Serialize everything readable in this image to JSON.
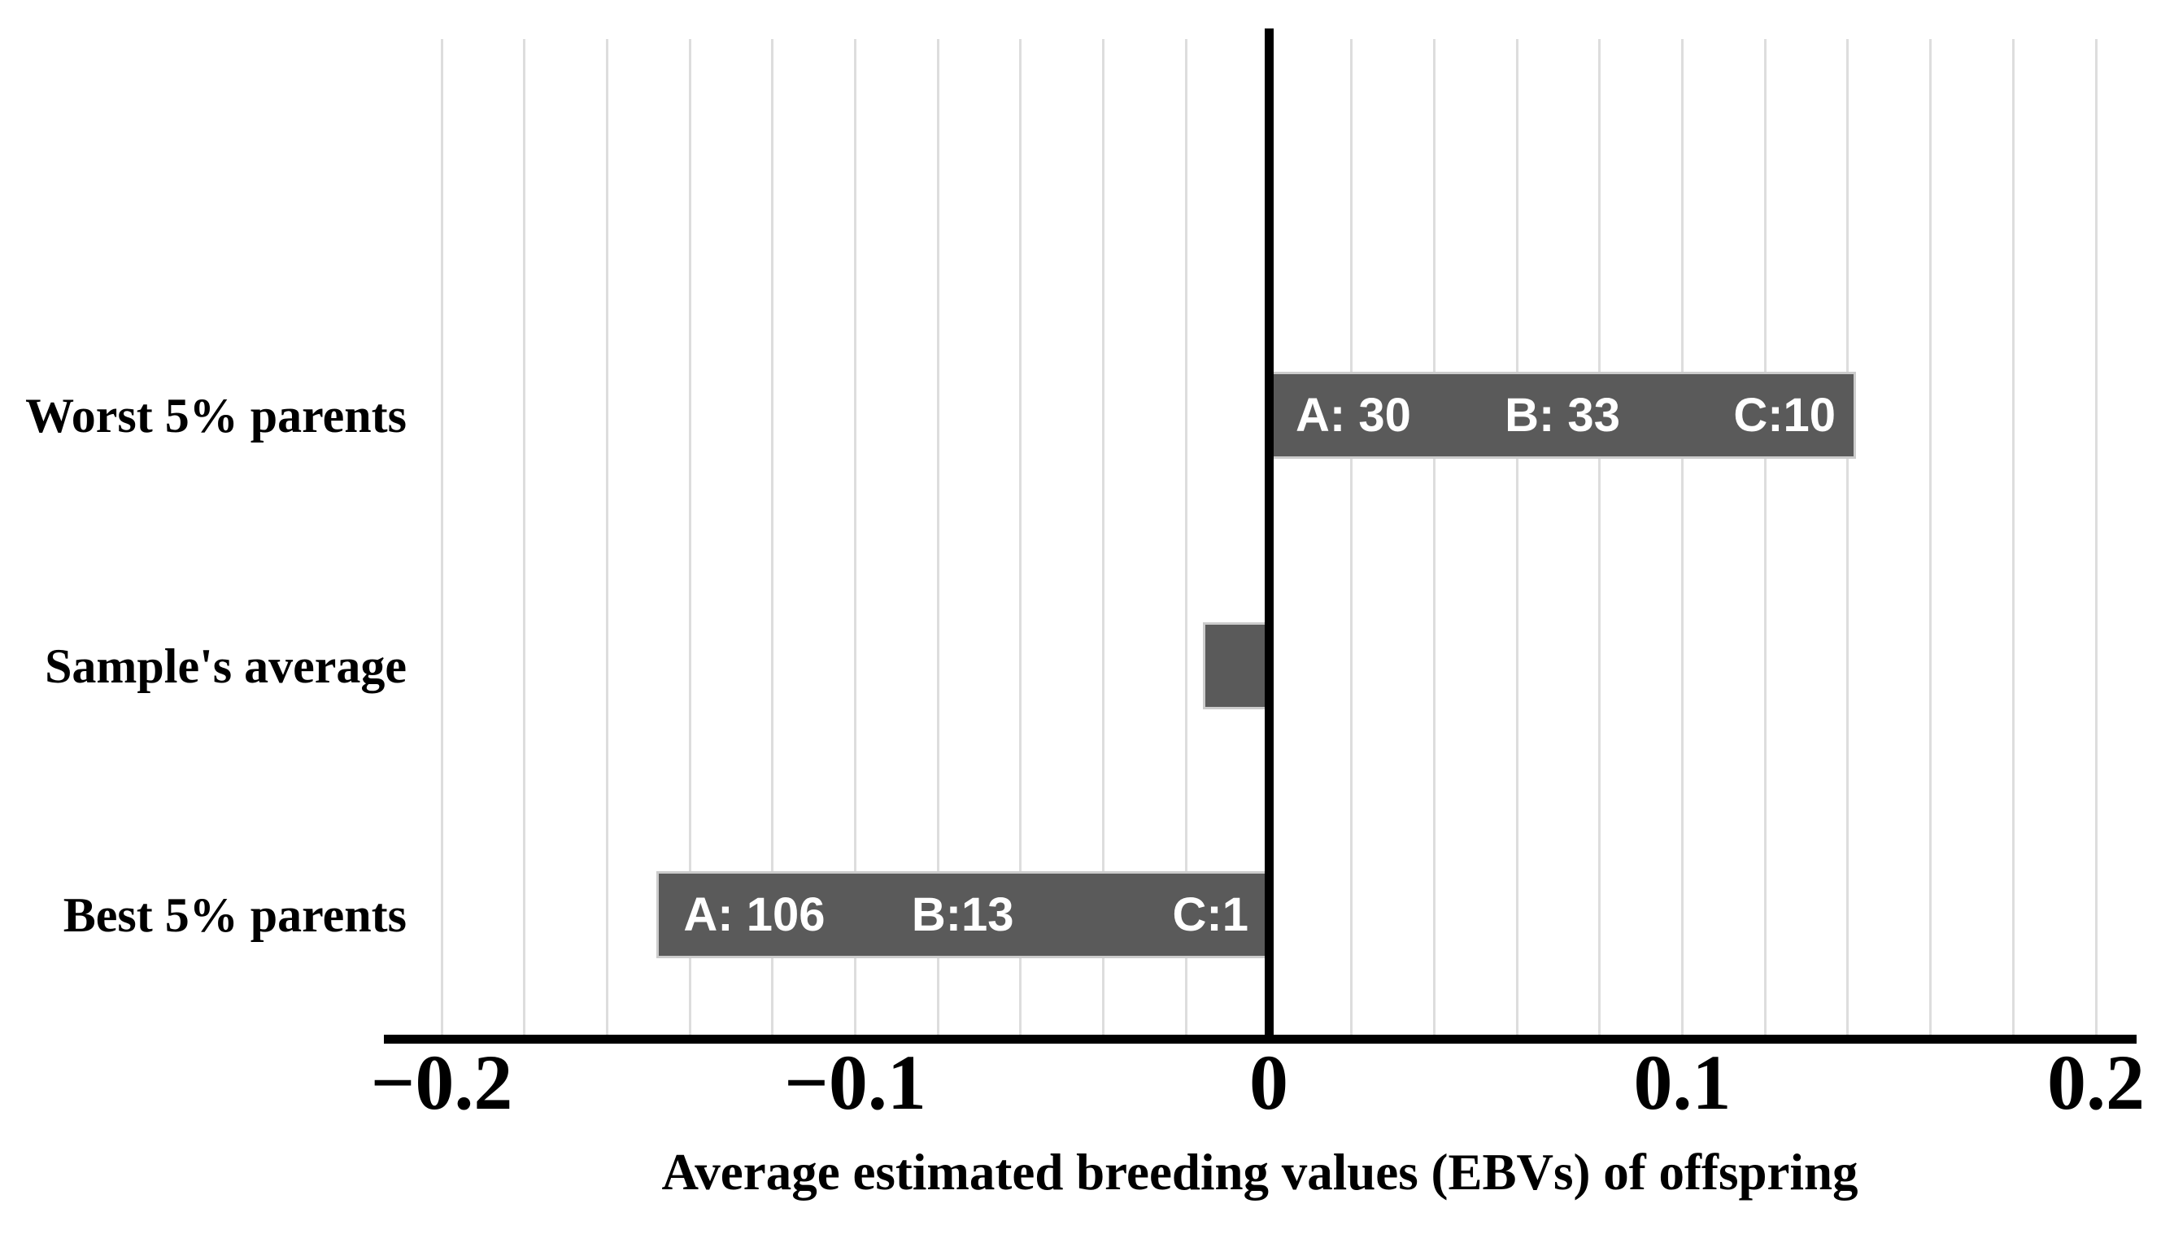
{
  "chart_data": {
    "type": "bar",
    "orientation": "horizontal",
    "title": "",
    "categories": [
      "Worst 5% parents",
      "Sample's average",
      "Best 5% parents"
    ],
    "values": [
      0.142,
      -0.016,
      -0.148
    ],
    "bar_annotations": [
      [
        {
          "text": "A: 30",
          "align": "left"
        },
        {
          "text": "B: 33",
          "align": "center"
        },
        {
          "text": "C:10",
          "align": "right"
        }
      ],
      [],
      [
        {
          "text": "A: 106",
          "align": "left"
        },
        {
          "text": "B:13",
          "align": "center"
        },
        {
          "text": "C:1",
          "align": "right"
        }
      ]
    ],
    "xlabel": "Average estimated breeding values (EBVs) of offspring",
    "ylabel": "",
    "x_ticks": [
      {
        "value": -0.2,
        "label": "−0.2"
      },
      {
        "value": -0.1,
        "label": "−0.1"
      },
      {
        "value": 0,
        "label": "0"
      },
      {
        "value": 0.1,
        "label": "0.1"
      },
      {
        "value": 0.2,
        "label": "0.2"
      }
    ],
    "xlim": [
      -0.214,
      0.21
    ],
    "minor_gridline_step": 0.02,
    "minor_gridline_range": [
      -0.2,
      0.2
    ],
    "grid": "vertical-minor-only",
    "legend": "none",
    "colors": {
      "bar_fill": "#5a5a5a",
      "bar_border": "#cccccc",
      "bar_label_text": "#ffffff",
      "gridline": "#dddddd",
      "axis_line": "#000000",
      "text": "#000000",
      "background": "#ffffff"
    }
  }
}
